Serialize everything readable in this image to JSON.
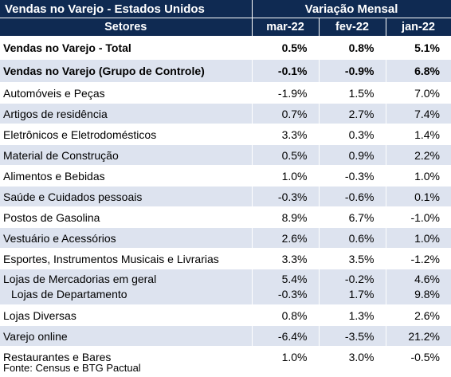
{
  "header": {
    "title": "Vendas no Varejo - Estados Unidos",
    "group": "Variação Mensal",
    "col_sectors": "Setores",
    "months": [
      "mar-22",
      "fev-22",
      "jan-22"
    ]
  },
  "rows": [
    {
      "label": "Vendas no Varejo - Total",
      "values": [
        "0.5%",
        "0.8%",
        "5.1%"
      ],
      "bold": true
    },
    {
      "label": "Vendas no Varejo (Grupo de Controle)",
      "values": [
        "-0.1%",
        "-0.9%",
        "6.8%"
      ],
      "bold": true
    },
    {
      "label": "Automóveis e Peças",
      "values": [
        "-1.9%",
        "1.5%",
        "7.0%"
      ]
    },
    {
      "label": "Artigos de residência",
      "values": [
        "0.7%",
        "2.7%",
        "7.4%"
      ]
    },
    {
      "label": "Eletrônicos e Eletrodomésticos",
      "values": [
        "3.3%",
        "0.3%",
        "1.4%"
      ]
    },
    {
      "label": "Material de Construção",
      "values": [
        "0.5%",
        "0.9%",
        "2.2%"
      ]
    },
    {
      "label": "Alimentos e Bebidas",
      "values": [
        "1.0%",
        "-0.3%",
        "1.0%"
      ]
    },
    {
      "label": "Saúde e Cuidados pessoais",
      "values": [
        "-0.3%",
        "-0.6%",
        "0.1%"
      ]
    },
    {
      "label": "Postos de Gasolina",
      "values": [
        "8.9%",
        "6.7%",
        "-1.0%"
      ]
    },
    {
      "label": "Vestuário e Acessórios",
      "values": [
        "2.6%",
        "0.6%",
        "1.0%"
      ]
    },
    {
      "label": "Esportes, Instrumentos Musicais e Livrarias",
      "values": [
        "3.3%",
        "3.5%",
        "-1.2%"
      ]
    },
    {
      "label": "Lojas de Mercadorias em geral",
      "values": [
        "5.4%",
        "-0.2%",
        "4.6%"
      ]
    },
    {
      "label": "Lojas de Departamento",
      "values": [
        "-0.3%",
        "1.7%",
        "9.8%"
      ]
    },
    {
      "label": "Lojas Diversas",
      "values": [
        "0.8%",
        "1.3%",
        "2.6%"
      ]
    },
    {
      "label": "Varejo online",
      "values": [
        "-6.4%",
        "-3.5%",
        "21.2%"
      ]
    },
    {
      "label": "Restaurantes e Bares",
      "values": [
        "1.0%",
        "3.0%",
        "-0.5%"
      ]
    }
  ],
  "source": "Fonte: Census e BTG Pactual",
  "colors": {
    "header_bg": "#0f2a52",
    "shade": "#dde3ef",
    "white": "#ffffff"
  }
}
